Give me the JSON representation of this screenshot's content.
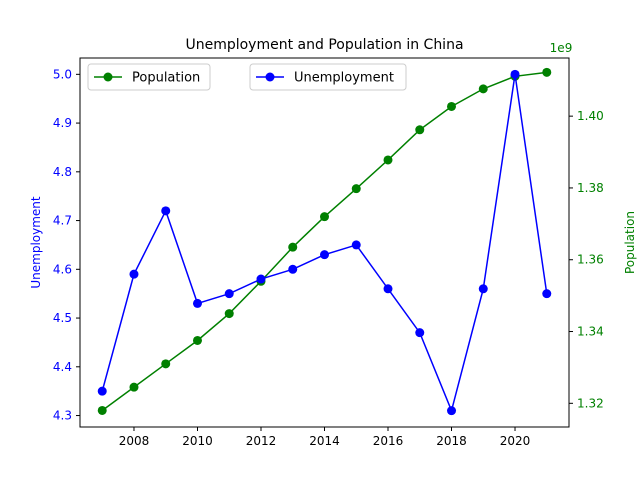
{
  "chart_data": {
    "type": "line",
    "title": "Unemployment and Population in China",
    "x": [
      2007,
      2008,
      2009,
      2010,
      2011,
      2012,
      2013,
      2014,
      2015,
      2016,
      2017,
      2018,
      2019,
      2020,
      2021
    ],
    "xticks": [
      2008,
      2010,
      2012,
      2014,
      2016,
      2018,
      2020
    ],
    "xlim": [
      2006.3,
      2021.7
    ],
    "left_axis": {
      "label": "Unemployment",
      "color": "#0000ff",
      "ylim": [
        4.2765,
        5.0335
      ],
      "ticks": [
        "4.3",
        "4.4",
        "4.5",
        "4.6",
        "4.7",
        "4.8",
        "4.9",
        "5.0"
      ],
      "tick_values": [
        4.3,
        4.4,
        4.5,
        4.6,
        4.7,
        4.8,
        4.9,
        5.0
      ]
    },
    "right_axis": {
      "label": "Population",
      "color": "#008000",
      "offset_text": "1e9",
      "ylim": [
        1.3134,
        1.4162
      ],
      "ticks": [
        "1.32",
        "1.34",
        "1.36",
        "1.38",
        "1.40"
      ],
      "tick_values": [
        1.32,
        1.34,
        1.36,
        1.38,
        1.4
      ]
    },
    "series": [
      {
        "name": "Population",
        "axis": "right",
        "color": "#008000",
        "values": [
          1.318,
          1.3245,
          1.331,
          1.3375,
          1.345,
          1.354,
          1.3635,
          1.372,
          1.3798,
          1.3878,
          1.3962,
          1.4027,
          1.4076,
          1.4111,
          1.4122
        ]
      },
      {
        "name": "Unemployment",
        "axis": "left",
        "color": "#0000ff",
        "values": [
          4.35,
          4.59,
          4.72,
          4.53,
          4.55,
          4.58,
          4.6,
          4.63,
          4.65,
          4.56,
          4.47,
          4.31,
          4.56,
          5.0,
          4.55
        ]
      }
    ],
    "legends": [
      {
        "placement": "upper-left",
        "entries": [
          "Population"
        ]
      },
      {
        "placement": "upper-center",
        "entries": [
          "Unemployment"
        ]
      }
    ],
    "grid": false
  }
}
